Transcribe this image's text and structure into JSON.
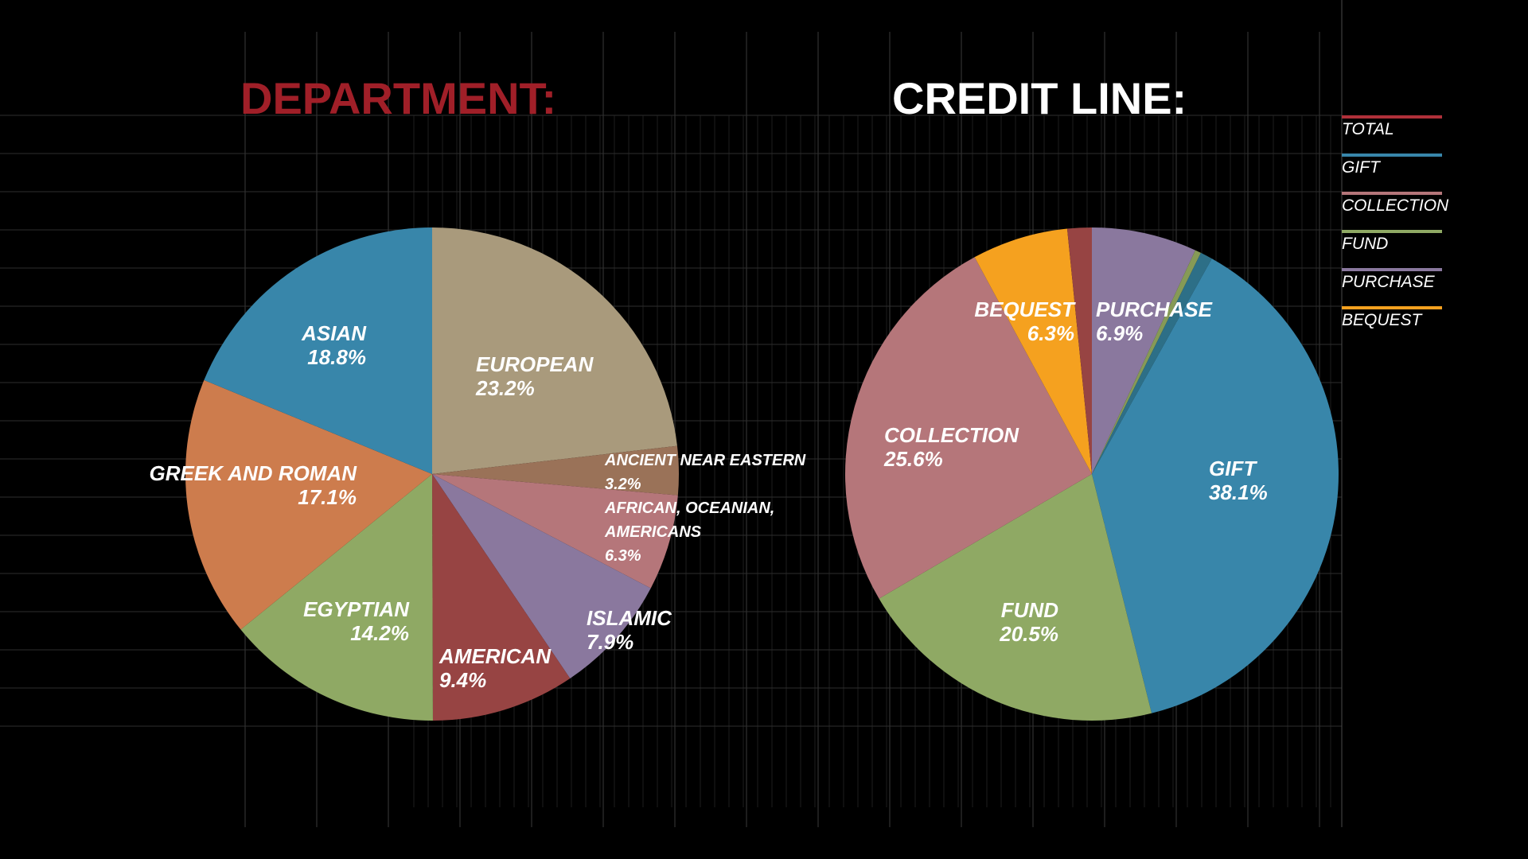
{
  "chart_data": [
    {
      "type": "pie",
      "title": "DEPARTMENT:",
      "title_color": "#a01f28",
      "slices": [
        {
          "label": "EUROPEAN",
          "value": 23.2,
          "value_label": "23.2%",
          "color": "#a99a7c"
        },
        {
          "label": "ANCIENT NEAR EASTERN",
          "value": 3.2,
          "value_label": "3.2%",
          "color": "#9a7258"
        },
        {
          "label": "AFRICAN, OCEANIAN, AMERICANS",
          "value": 6.3,
          "value_label": "6.3%",
          "color": "#b5767a"
        },
        {
          "label": "ISLAMIC",
          "value": 7.9,
          "value_label": "7.9%",
          "color": "#8a789e"
        },
        {
          "label": "AMERICAN",
          "value": 9.4,
          "value_label": "9.4%",
          "color": "#974443"
        },
        {
          "label": "EGYPTIAN",
          "value": 14.2,
          "value_label": "14.2%",
          "color": "#8fa964"
        },
        {
          "label": "GREEK AND ROMAN",
          "value": 17.1,
          "value_label": "17.1%",
          "color": "#cd7c4d"
        },
        {
          "label": "ASIAN",
          "value": 18.8,
          "value_label": "18.8%",
          "color": "#3886aa"
        }
      ]
    },
    {
      "type": "pie",
      "title": "CREDIT LINE:",
      "title_color": "#ffffff",
      "slices": [
        {
          "label": "PURCHASE",
          "value": 6.9,
          "value_label": "6.9%",
          "color": "#8a789e"
        },
        {
          "label": "",
          "value": 0.4,
          "value_label": "",
          "color": "#869a56"
        },
        {
          "label": "",
          "value": 0.8,
          "value_label": "",
          "color": "#2d6f87"
        },
        {
          "label": "GIFT",
          "value": 38.1,
          "value_label": "38.1%",
          "color": "#3886aa"
        },
        {
          "label": "FUND",
          "value": 20.5,
          "value_label": "20.5%",
          "color": "#8fa964"
        },
        {
          "label": "COLLECTION",
          "value": 25.6,
          "value_label": "25.6%",
          "color": "#b5767a"
        },
        {
          "label": "BEQUEST",
          "value": 6.3,
          "value_label": "6.3%",
          "color": "#f5a11f"
        },
        {
          "label": "",
          "value": 1.6,
          "value_label": "",
          "color": "#974443"
        }
      ],
      "legend": {
        "placement": "right",
        "entries": [
          {
            "label": "TOTAL",
            "color": "#b0303a"
          },
          {
            "label": "GIFT",
            "color": "#3886aa"
          },
          {
            "label": "COLLECTION",
            "color": "#b5767a"
          },
          {
            "label": "FUND",
            "color": "#8fa964"
          },
          {
            "label": "PURCHASE",
            "color": "#8a789e"
          },
          {
            "label": "BEQUEST",
            "color": "#f5a11f"
          }
        ]
      }
    }
  ],
  "background": {
    "color": "#000000",
    "grid": true,
    "grid_color": "#3a3a3a"
  }
}
